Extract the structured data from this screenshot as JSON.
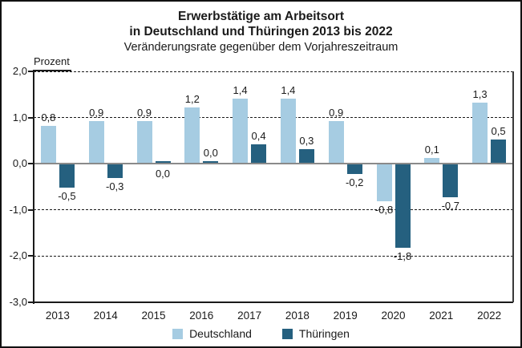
{
  "title": {
    "line1": "Erwerbstätige am Arbeitsort",
    "line2": "in Deutschland und Thüringen 2013 bis 2022",
    "subtitle": "Veränderungsrate gegenüber dem Vorjahreszeitraum"
  },
  "chart_data": {
    "type": "bar",
    "title": "Erwerbstätige am Arbeitsort in Deutschland und Thüringen 2013 bis 2022",
    "subtitle": "Veränderungsrate gegenüber dem Vorjahreszeitraum",
    "ylabel": "Prozent",
    "ylim": [
      -3.0,
      2.0
    ],
    "yticks": [
      2.0,
      1.0,
      0.0,
      -1.0,
      -2.0,
      -3.0
    ],
    "ytick_labels": [
      "2,0",
      "1,0",
      "0,0",
      "-1,0",
      "-2,0",
      "-3,0"
    ],
    "grid": "horizontal-dashed",
    "zero_line": true,
    "legend_position": "bottom",
    "categories": [
      "2013",
      "2014",
      "2015",
      "2016",
      "2017",
      "2018",
      "2019",
      "2020",
      "2021",
      "2022"
    ],
    "series": [
      {
        "name": "Deutschland",
        "color": "#a6cce2",
        "values": [
          0.8,
          0.9,
          0.9,
          1.2,
          1.4,
          1.4,
          0.9,
          -0.8,
          0.1,
          1.3
        ],
        "labels": [
          "0,8",
          "0,9",
          "0,9",
          "1,2",
          "1,4",
          "1,4",
          "0,9",
          "-0,8",
          "0,1",
          "1,3"
        ],
        "label_positions": [
          "above",
          "above",
          "above",
          "above",
          "above",
          "above",
          "above",
          "below",
          "above",
          "above"
        ]
      },
      {
        "name": "Thüringen",
        "color": "#25607f",
        "values": [
          -0.5,
          -0.3,
          0.0,
          0.0,
          0.4,
          0.3,
          -0.2,
          -1.8,
          -0.7,
          0.5
        ],
        "labels": [
          "-0,5",
          "-0,3",
          "0,0",
          "0,0",
          "0,4",
          "0,3",
          "-0,2",
          "-1,8",
          "-0,7",
          "0,5"
        ],
        "label_positions": [
          "below",
          "below",
          "below",
          "above",
          "above",
          "above",
          "below",
          "below",
          "below",
          "above"
        ]
      }
    ],
    "colors": {
      "deutschland_bar": "#a6cce2",
      "thueringen_bar": "#25607f",
      "zero_line": "#8a8a8a",
      "axis": "#1a1a1a",
      "grid": "#1a1a1a"
    }
  }
}
